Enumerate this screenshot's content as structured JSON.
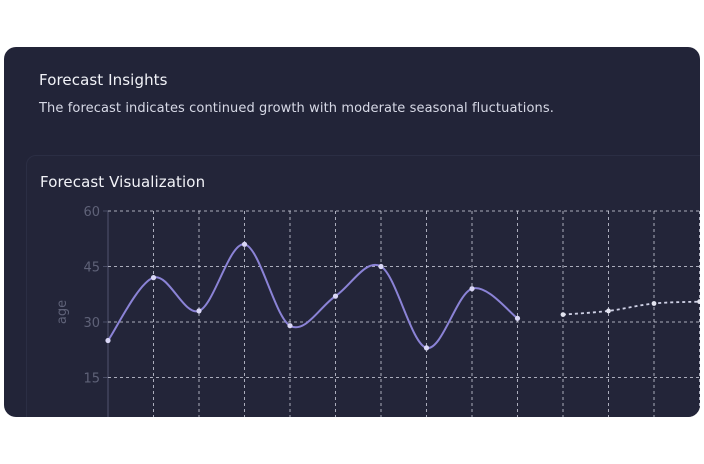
{
  "insights": {
    "title": "Forecast Insights",
    "description": "The forecast indicates continued growth with moderate seasonal fluctuations."
  },
  "visualization": {
    "title": "Forecast Visualization"
  },
  "colors": {
    "card_bg": "#222438",
    "actual_line": "#8b83d6",
    "forecast_line": "#cfd1e6",
    "grid": "#d9dbe8"
  },
  "chart_data": {
    "type": "line",
    "ylabel": "age",
    "ylim": [
      0,
      60
    ],
    "yticks": [
      15,
      30,
      45,
      60
    ],
    "grid": true,
    "series": [
      {
        "values": [
          25,
          42,
          33,
          51,
          29,
          37,
          45,
          23,
          39,
          31
        ]
      },
      {
        "style": "dashed",
        "x_index": [
          10,
          11,
          12,
          13
        ],
        "values": [
          32,
          33,
          35,
          35.5
        ]
      }
    ]
  }
}
